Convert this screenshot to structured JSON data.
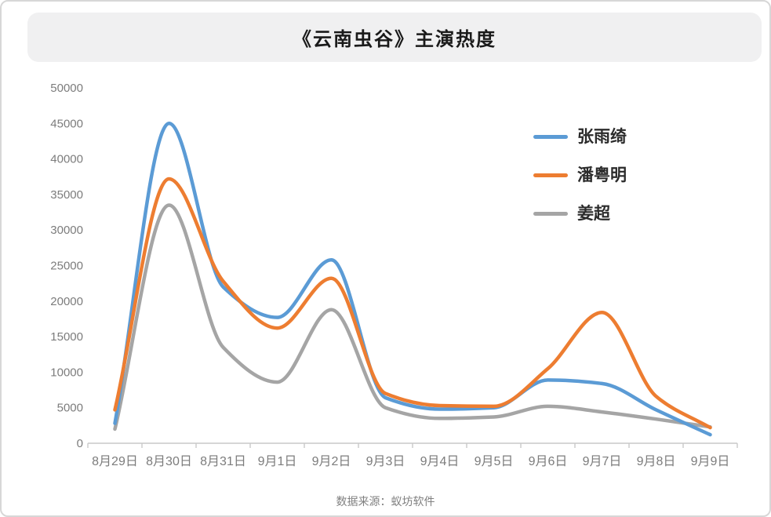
{
  "title": "《云南虫谷》主演热度",
  "footer": "数据来源：蚁坊软件",
  "colors": {
    "series_blue": "#5B9BD5",
    "series_orange": "#ED7D31",
    "series_gray": "#A5A5A5",
    "axis": "#C9C9C9",
    "tick_label": "#7c7c7c",
    "title_bar_bg": "#f0f0f1"
  },
  "chart_data": {
    "type": "line",
    "smooth": true,
    "grid": false,
    "legend_position": "upper-right",
    "title": "《云南虫谷》主演热度",
    "xlabel": "",
    "ylabel": "",
    "ylim": [
      0,
      50000
    ],
    "yticks": [
      0,
      5000,
      10000,
      15000,
      20000,
      25000,
      30000,
      35000,
      40000,
      45000,
      50000
    ],
    "categories": [
      "8月29日",
      "8月30日",
      "8月31日",
      "9月1日",
      "9月2日",
      "9月3日",
      "9月4日",
      "9月5日",
      "9月6日",
      "9月7日",
      "9月8日",
      "9月9日"
    ],
    "series": [
      {
        "name": "张雨绮",
        "color": "#5B9BD5",
        "values": [
          2800,
          45000,
          22000,
          17700,
          25800,
          6400,
          4800,
          5000,
          8900,
          8400,
          4700,
          1200
        ]
      },
      {
        "name": "潘粤明",
        "color": "#ED7D31",
        "values": [
          4700,
          37200,
          22800,
          16200,
          23200,
          7000,
          5300,
          5200,
          10500,
          18400,
          6600,
          2200
        ]
      },
      {
        "name": "姜超",
        "color": "#A5A5A5",
        "values": [
          2000,
          33500,
          13500,
          8600,
          18800,
          5000,
          3500,
          3700,
          5200,
          4400,
          3400,
          2300
        ]
      }
    ]
  }
}
